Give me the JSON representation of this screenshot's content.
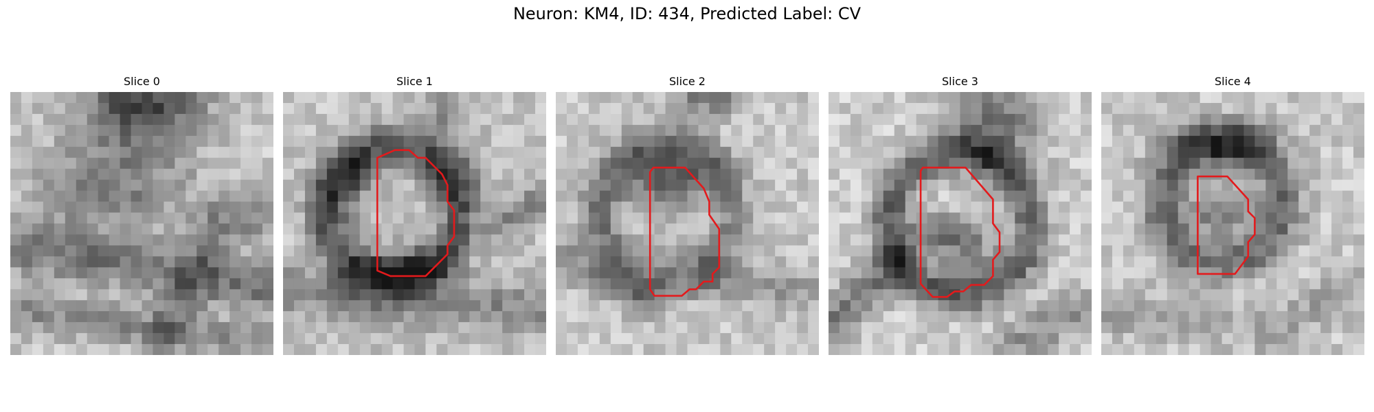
{
  "figure": {
    "title": "Neuron: KM4, ID: 434, Predicted Label: CV"
  },
  "slices": [
    {
      "title": "Slice 0",
      "has_contour": false
    },
    {
      "title": "Slice 1",
      "has_contour": true
    },
    {
      "title": "Slice 2",
      "has_contour": true
    },
    {
      "title": "Slice 3",
      "has_contour": true
    },
    {
      "title": "Slice 4",
      "has_contour": true
    }
  ],
  "colors": {
    "contour": "#e31a1c",
    "background": "#ffffff"
  }
}
